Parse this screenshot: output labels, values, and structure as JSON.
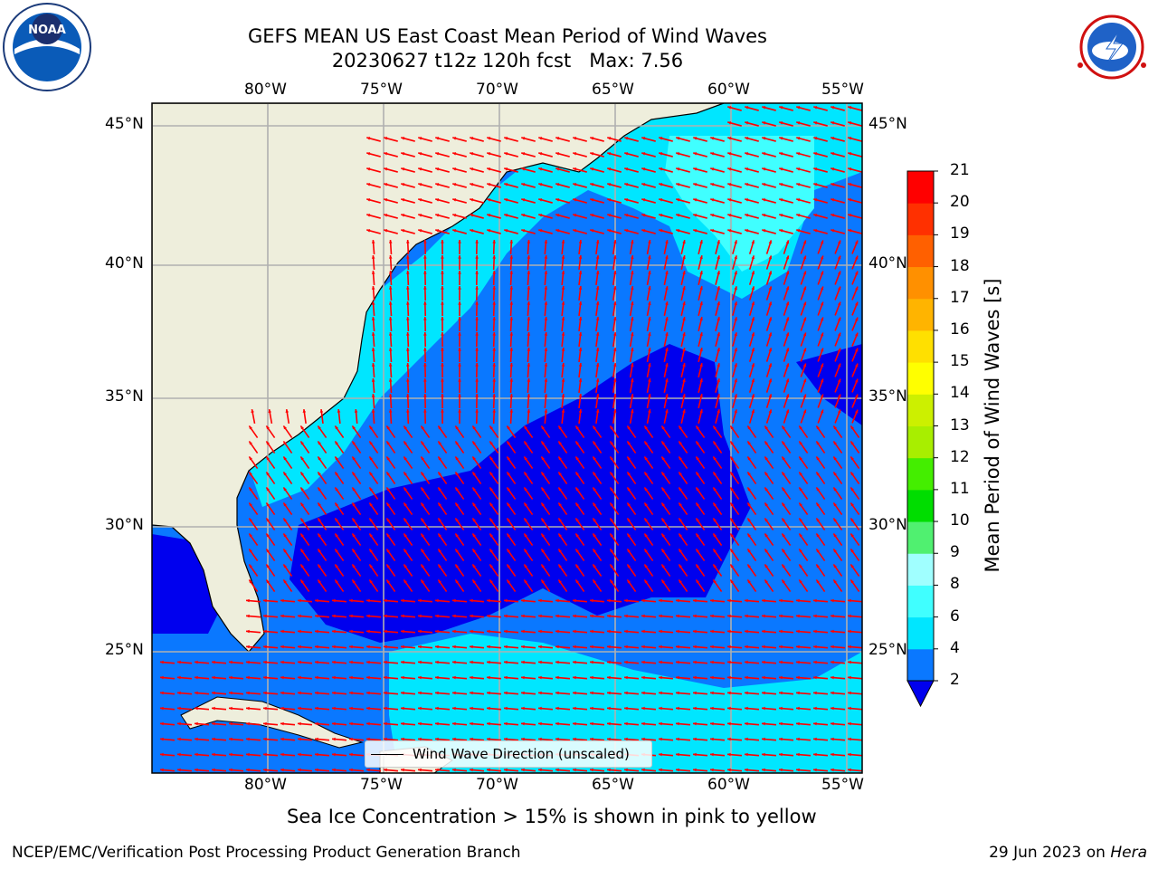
{
  "title": {
    "line1": "GEFS MEAN US East Coast Mean Period of Wind Waves",
    "line2": "20230627 t12z 120h fcst   Max: 7.56"
  },
  "logos": {
    "left": {
      "icon": "noaa-logo",
      "text": "NOAA"
    },
    "right": {
      "icon": "nws-logo",
      "text": "NATIONAL WEATHER SERVICE"
    }
  },
  "map": {
    "projection": "cylindrical",
    "lon_range": [
      -85,
      -54
    ],
    "lat_range": [
      20.5,
      46
    ],
    "lon_ticks": [
      "80°W",
      "75°W",
      "70°W",
      "65°W",
      "60°W",
      "55°W"
    ],
    "lat_ticks": [
      "45°N",
      "40°N",
      "35°N",
      "30°N",
      "25°N"
    ],
    "land_color": "#eeeedc",
    "gridlines": true
  },
  "legend": {
    "label": "Wind Wave Direction (unscaled)",
    "arrow_color": "#ff0000"
  },
  "colorbar": {
    "label": "Mean Period of Wind Waves [s]",
    "ticks": [
      "2",
      "4",
      "6",
      "8",
      "9",
      "10",
      "11",
      "12",
      "13",
      "14",
      "15",
      "16",
      "17",
      "18",
      "19",
      "20",
      "21"
    ],
    "colors": [
      "#0000ee",
      "#0a78ff",
      "#00e6ff",
      "#40ffff",
      "#a0ffff",
      "#50f070",
      "#00dd00",
      "#44ee00",
      "#a8ee00",
      "#ccf000",
      "#ffff00",
      "#ffe000",
      "#ffb400",
      "#ff9000",
      "#ff6000",
      "#ff3000",
      "#ff0000"
    ],
    "extend": "min"
  },
  "note": "Sea Ice Concentration > 15% is shown in pink to yellow",
  "footer": {
    "left": "NCEP/EMC/Verification Post Processing Product Generation Branch",
    "right_prefix": "29 Jun 2023 on ",
    "right_host": "Hera"
  }
}
